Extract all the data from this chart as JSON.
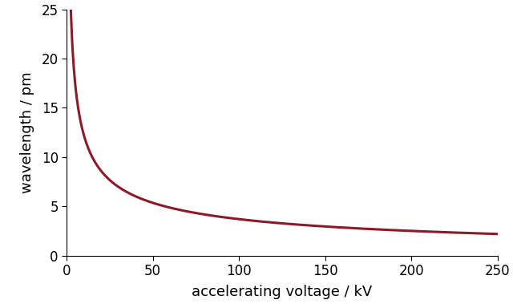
{
  "title": "",
  "xlabel": "accelerating voltage / kV",
  "ylabel": "wavelength / pm",
  "xlim": [
    0,
    250
  ],
  "ylim": [
    0,
    25
  ],
  "xticks": [
    0,
    50,
    100,
    150,
    200,
    250
  ],
  "yticks": [
    0,
    5,
    10,
    15,
    20,
    25
  ],
  "line_color": "#8B1A2A",
  "line_width": 2.2,
  "background_color": "#ffffff",
  "v_start_kV": 0.05,
  "v_end_kV": 250,
  "num_points": 2000,
  "figsize": [
    6.4,
    3.84
  ],
  "dpi": 100,
  "tick_fontsize": 12,
  "label_fontsize": 13
}
